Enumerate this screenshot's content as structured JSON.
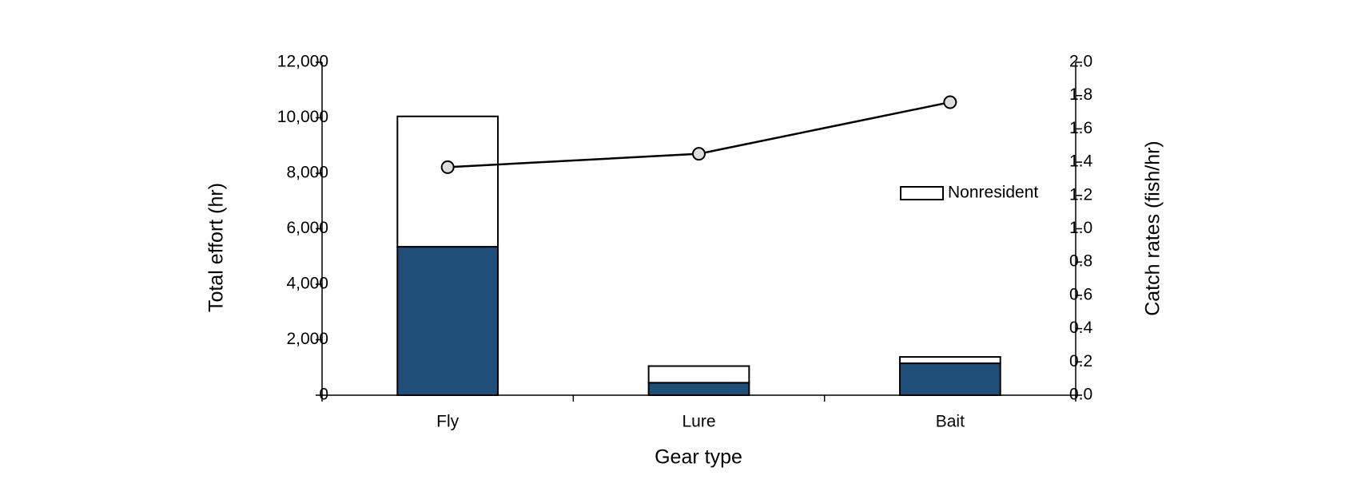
{
  "chart_data": {
    "type": "bar",
    "stacked": true,
    "x_label": "Gear type",
    "y_label": "Total effort (hr)",
    "y2_label": "Catch rates (fish/hr)",
    "categories": [
      "Fly",
      "Lure",
      "Bait"
    ],
    "series": [
      {
        "color": "#1f4e79",
        "values": [
          5350,
          450,
          1150
        ]
      },
      {
        "name": "Nonresident",
        "color": "#ffffff",
        "values": [
          4700,
          600,
          230
        ]
      },
      {
        "type": "line",
        "axis": "y2",
        "color": "#000000",
        "values": [
          1.37,
          1.45,
          1.76
        ]
      }
    ],
    "ylim": [
      0,
      12000
    ],
    "yticks": [
      0,
      {
        "value": 2000,
        "label": "2,000"
      },
      {
        "value": 4000,
        "label": "4,000"
      },
      {
        "value": 6000,
        "label": "6,000"
      },
      {
        "value": 8000,
        "label": "8,000"
      },
      {
        "value": 10000,
        "label": "10,000"
      },
      {
        "value": 12000,
        "label": "12,000"
      }
    ],
    "y2lim": [
      0,
      2
    ],
    "y2ticks": [
      {
        "value": 0,
        "label": "0.0"
      },
      0.2,
      0.4,
      0.6,
      0.8,
      {
        "value": 1,
        "label": "1.0"
      },
      1.2,
      1.4,
      1.6,
      1.8,
      {
        "value": 2,
        "label": "2.0"
      }
    ],
    "grid": false,
    "legend": "right"
  }
}
